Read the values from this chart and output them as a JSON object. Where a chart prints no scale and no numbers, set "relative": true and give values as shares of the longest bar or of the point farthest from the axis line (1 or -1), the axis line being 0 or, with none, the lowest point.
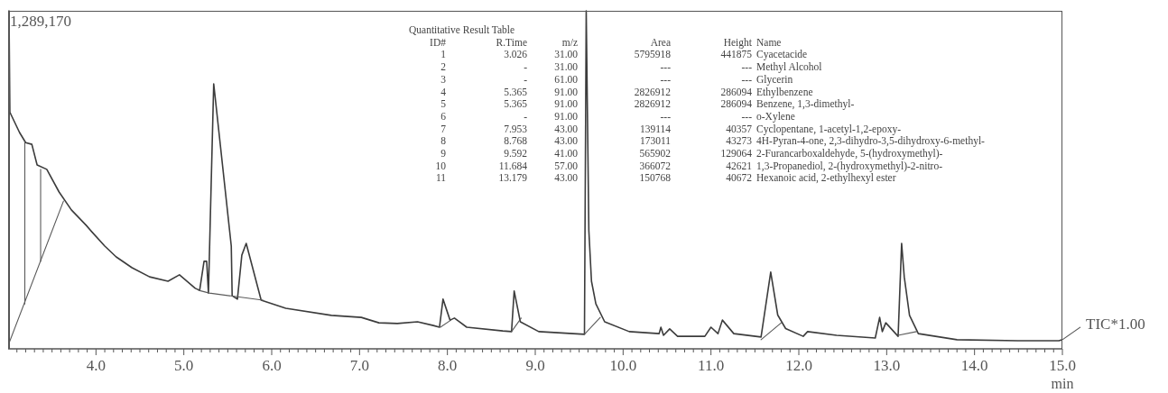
{
  "chart_data": {
    "type": "line",
    "relative": true,
    "xlabel": "min",
    "xlim": [
      3,
      15
    ],
    "xticks": [
      {
        "value": 3.1,
        "label": null
      },
      {
        "value": 3.2,
        "label": null
      },
      {
        "value": 3.3,
        "label": null
      },
      {
        "value": 3.4,
        "label": null
      },
      {
        "value": 3.5,
        "label": null
      },
      {
        "value": 3.6,
        "label": null
      },
      {
        "value": 3.7,
        "label": null
      },
      {
        "value": 3.8,
        "label": null
      },
      {
        "value": 3.9,
        "label": null
      },
      {
        "value": 4,
        "label": "4.0"
      },
      {
        "value": 4.1,
        "label": null
      },
      {
        "value": 4.2,
        "label": null
      },
      {
        "value": 4.3,
        "label": null
      },
      {
        "value": 4.4,
        "label": null
      },
      {
        "value": 4.5,
        "label": null
      },
      {
        "value": 4.6,
        "label": null
      },
      {
        "value": 4.7,
        "label": null
      },
      {
        "value": 4.8,
        "label": null
      },
      {
        "value": 4.9,
        "label": null
      },
      {
        "value": 5,
        "label": "5.0"
      },
      {
        "value": 5.1,
        "label": null
      },
      {
        "value": 5.2,
        "label": null
      },
      {
        "value": 5.3,
        "label": null
      },
      {
        "value": 5.4,
        "label": null
      },
      {
        "value": 5.5,
        "label": null
      },
      {
        "value": 5.6,
        "label": null
      },
      {
        "value": 5.7,
        "label": null
      },
      {
        "value": 5.8,
        "label": null
      },
      {
        "value": 5.9,
        "label": null
      },
      {
        "value": 6,
        "label": "6.0"
      },
      {
        "value": 6.1,
        "label": null
      },
      {
        "value": 6.2,
        "label": null
      },
      {
        "value": 6.3,
        "label": null
      },
      {
        "value": 6.4,
        "label": null
      },
      {
        "value": 6.5,
        "label": null
      },
      {
        "value": 6.6,
        "label": null
      },
      {
        "value": 6.7,
        "label": null
      },
      {
        "value": 6.8,
        "label": null
      },
      {
        "value": 6.9,
        "label": null
      },
      {
        "value": 7,
        "label": "7.0"
      },
      {
        "value": 7.1,
        "label": null
      },
      {
        "value": 7.2,
        "label": null
      },
      {
        "value": 7.3,
        "label": null
      },
      {
        "value": 7.4,
        "label": null
      },
      {
        "value": 7.5,
        "label": null
      },
      {
        "value": 7.6,
        "label": null
      },
      {
        "value": 7.7,
        "label": null
      },
      {
        "value": 7.8,
        "label": null
      },
      {
        "value": 7.9,
        "label": null
      },
      {
        "value": 8,
        "label": "8.0"
      },
      {
        "value": 8.1,
        "label": null
      },
      {
        "value": 8.2,
        "label": null
      },
      {
        "value": 8.3,
        "label": null
      },
      {
        "value": 8.4,
        "label": null
      },
      {
        "value": 8.5,
        "label": null
      },
      {
        "value": 8.6,
        "label": null
      },
      {
        "value": 8.7,
        "label": null
      },
      {
        "value": 8.8,
        "label": null
      },
      {
        "value": 8.9,
        "label": null
      },
      {
        "value": 9,
        "label": "9.0"
      },
      {
        "value": 9.1,
        "label": null
      },
      {
        "value": 9.2,
        "label": null
      },
      {
        "value": 9.3,
        "label": null
      },
      {
        "value": 9.4,
        "label": null
      },
      {
        "value": 9.5,
        "label": null
      },
      {
        "value": 9.6,
        "label": null
      },
      {
        "value": 9.7,
        "label": null
      },
      {
        "value": 9.8,
        "label": null
      },
      {
        "value": 9.9,
        "label": null
      },
      {
        "value": 10,
        "label": "10.0"
      },
      {
        "value": 10.1,
        "label": null
      },
      {
        "value": 10.2,
        "label": null
      },
      {
        "value": 10.3,
        "label": null
      },
      {
        "value": 10.4,
        "label": null
      },
      {
        "value": 10.5,
        "label": null
      },
      {
        "value": 10.6,
        "label": null
      },
      {
        "value": 10.7,
        "label": null
      },
      {
        "value": 10.8,
        "label": null
      },
      {
        "value": 10.9,
        "label": null
      },
      {
        "value": 11,
        "label": "11.0"
      },
      {
        "value": 11.1,
        "label": null
      },
      {
        "value": 11.2,
        "label": null
      },
      {
        "value": 11.3,
        "label": null
      },
      {
        "value": 11.4,
        "label": null
      },
      {
        "value": 11.5,
        "label": null
      },
      {
        "value": 11.6,
        "label": null
      },
      {
        "value": 11.7,
        "label": null
      },
      {
        "value": 11.8,
        "label": null
      },
      {
        "value": 11.9,
        "label": null
      },
      {
        "value": 12,
        "label": "12.0"
      },
      {
        "value": 12.1,
        "label": null
      },
      {
        "value": 12.2,
        "label": null
      },
      {
        "value": 12.3,
        "label": null
      },
      {
        "value": 12.4,
        "label": null
      },
      {
        "value": 12.5,
        "label": null
      },
      {
        "value": 12.6,
        "label": null
      },
      {
        "value": 12.7,
        "label": null
      },
      {
        "value": 12.8,
        "label": null
      },
      {
        "value": 12.9,
        "label": null
      },
      {
        "value": 13,
        "label": "13.0"
      },
      {
        "value": 13.1,
        "label": null
      },
      {
        "value": 13.2,
        "label": null
      },
      {
        "value": 13.3,
        "label": null
      },
      {
        "value": 13.4,
        "label": null
      },
      {
        "value": 13.5,
        "label": null
      },
      {
        "value": 13.6,
        "label": null
      },
      {
        "value": 13.7,
        "label": null
      },
      {
        "value": 13.8,
        "label": null
      },
      {
        "value": 13.9,
        "label": null
      },
      {
        "value": 14,
        "label": "14.0"
      },
      {
        "value": 14.1,
        "label": null
      },
      {
        "value": 14.2,
        "label": null
      },
      {
        "value": 14.3,
        "label": null
      },
      {
        "value": 14.4,
        "label": null
      },
      {
        "value": 14.5,
        "label": null
      },
      {
        "value": 14.6,
        "label": null
      },
      {
        "value": 14.7,
        "label": null
      },
      {
        "value": 14.8,
        "label": null
      },
      {
        "value": 14.9,
        "label": null
      },
      {
        "value": 15,
        "label": "15.0"
      }
    ],
    "series": [
      {
        "color": "#3c3c3c",
        "x": [
          3.0,
          3.01,
          3.02,
          3.13,
          3.2,
          3.27,
          3.33,
          3.44,
          3.58,
          3.72,
          3.89,
          3.95,
          4.1,
          4.23,
          4.41,
          4.61,
          4.82,
          4.95,
          5.13,
          5.18,
          5.23,
          5.26,
          5.28,
          5.34,
          5.54,
          5.55,
          5.61,
          5.66,
          5.71,
          5.88,
          6.16,
          6.68,
          7.02,
          7.22,
          7.43,
          7.66,
          7.84,
          7.91,
          7.95,
          8.03,
          8.08,
          8.22,
          8.63,
          8.73,
          8.76,
          8.83,
          9.04,
          9.56,
          9.58,
          9.61,
          9.64,
          9.69,
          9.79,
          10.07,
          10.41,
          10.43,
          10.46,
          10.53,
          10.62,
          10.93,
          11.0,
          11.08,
          11.13,
          11.26,
          11.57,
          11.68,
          11.76,
          11.85,
          12.05,
          12.1,
          12.43,
          12.87,
          12.92,
          12.95,
          12.99,
          13.13,
          13.17,
          13.2,
          13.26,
          13.36,
          13.8,
          14.49,
          14.96,
          15.0
        ],
        "values": [
          0.01,
          1.0,
          0.7,
          0.64,
          0.61,
          0.605,
          0.544,
          0.531,
          0.464,
          0.411,
          0.365,
          0.347,
          0.304,
          0.272,
          0.24,
          0.213,
          0.2,
          0.219,
          0.179,
          0.173,
          0.259,
          0.259,
          0.165,
          0.784,
          0.304,
          0.157,
          0.147,
          0.277,
          0.312,
          0.144,
          0.12,
          0.099,
          0.093,
          0.077,
          0.075,
          0.08,
          0.069,
          0.064,
          0.147,
          0.085,
          0.091,
          0.064,
          0.053,
          0.051,
          0.171,
          0.08,
          0.051,
          0.043,
          1.0,
          0.35,
          0.2,
          0.133,
          0.08,
          0.051,
          0.045,
          0.064,
          0.04,
          0.059,
          0.037,
          0.037,
          0.064,
          0.045,
          0.085,
          0.045,
          0.035,
          0.227,
          0.1,
          0.06,
          0.037,
          0.051,
          0.04,
          0.032,
          0.093,
          0.051,
          0.077,
          0.037,
          0.312,
          0.213,
          0.099,
          0.045,
          0.027,
          0.024,
          0.024,
          0.027
        ]
      },
      {
        "color": "#5a5a5a",
        "x": [
          3.0,
          3.63
        ],
        "values": [
          0.01,
          0.437
        ]
      },
      {
        "color": "#5a5a5a",
        "x": [
          3.19,
          3.19
        ],
        "values": [
          0.133,
          0.613
        ]
      },
      {
        "color": "#5a5a5a",
        "x": [
          3.37,
          3.37
        ],
        "values": [
          0.259,
          0.531
        ]
      },
      {
        "color": "#5a5a5a",
        "x": [
          5.17,
          5.29,
          5.9
        ],
        "values": [
          0.173,
          0.165,
          0.144
        ]
      },
      {
        "color": "#5a5a5a",
        "x": [
          7.92,
          8.04
        ],
        "values": [
          0.064,
          0.085
        ]
      },
      {
        "color": "#5a5a5a",
        "x": [
          8.73,
          8.84
        ],
        "values": [
          0.051,
          0.091
        ]
      },
      {
        "color": "#5a5a5a",
        "x": [
          9.56,
          9.74
        ],
        "values": [
          0.043,
          0.093
        ]
      },
      {
        "color": "#5a5a5a",
        "x": [
          11.57,
          11.8
        ],
        "values": [
          0.027,
          0.077
        ]
      },
      {
        "color": "#5a5a5a",
        "x": [
          13.13,
          13.34
        ],
        "values": [
          0.04,
          0.051
        ]
      }
    ],
    "annotations": [
      "1,289,170",
      {
        "text": "TIC*1.00",
        "x": 15,
        "y": 0.027
      },
      "Quantitative Result Table",
      "ID#\tR.Time\tm/z\tArea\tHeight\tName",
      "1\t3.026\t31.00\t5795918\t441875\tCyacetacide",
      "2\t-\t31.00\t---\t---\tMethyl Alcohol",
      "3\t-\t61.00\t---\t---\tGlycerin",
      "4\t5.365\t91.00\t2826912\t286094\tEthylbenzene",
      "5\t5.365\t91.00\t2826912\t286094\tBenzene, 1,3-dimethyl-",
      "6\t-\t91.00\t---\t---\to-Xylene",
      "7\t7.953\t43.00\t139114\t40357\tCyclopentane, 1-acetyl-1,2-epoxy-",
      "8\t8.768\t43.00\t173011\t43273\t4H-Pyran-4-one, 2,3-dihydro-3,5-dihydroxy-6-methyl-",
      "9\t9.592\t41.00\t565902\t129064\t2-Furancarboxaldehyde, 5-(hydroxymethyl)-",
      "10\t11.684\t57.00\t366072\t42621\t1,3-Propanediol, 2-(hydroxymethyl)-2-nitro-",
      "11\t13.179\t43.00\t150768\t40672\tHexanoic acid, 2-ethylhexyl ester"
    ]
  }
}
